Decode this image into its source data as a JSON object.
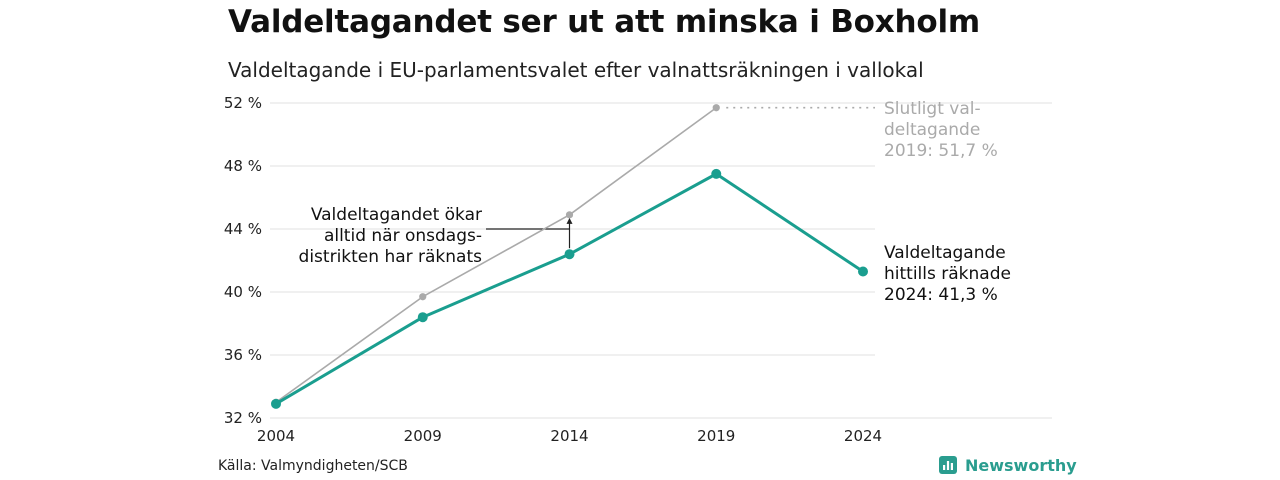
{
  "title": "Valdeltagandet ser ut att minska i Boxholm",
  "subtitle": "Valdeltagande i EU-parlamentsvalet efter valnattsräkningen i vallokal",
  "source": "Källa: Valmyndigheten/SCB",
  "brand": {
    "name": "Newsworthy",
    "icon": "newsworthy-logo-icon",
    "color": "#2a9d8f"
  },
  "chart_data": {
    "type": "line",
    "x": [
      2004,
      2009,
      2014,
      2019,
      2024
    ],
    "x_tick_labels": [
      "2004",
      "2009",
      "2014",
      "2019",
      "2024"
    ],
    "y_ticks": [
      32,
      36,
      40,
      44,
      48,
      52
    ],
    "y_tick_labels": [
      "32 %",
      "36 %",
      "40 %",
      "44 %",
      "48 %",
      "52 %"
    ],
    "ylim": [
      32,
      52
    ],
    "grid": true,
    "series": [
      {
        "key": "final",
        "color": "#aaaaaa",
        "values": [
          33.0,
          39.7,
          44.9,
          51.7,
          null
        ]
      },
      {
        "key": "counted",
        "color": "#1a9e8f",
        "values": [
          32.9,
          38.4,
          42.4,
          47.5,
          41.3
        ]
      }
    ],
    "annotations": [
      {
        "key": "final_label",
        "lines": [
          "Slutligt val-",
          "deltagande",
          "2019: 51,7 %"
        ],
        "color": "#aaaaaa"
      },
      {
        "key": "counted_label",
        "lines": [
          "Valdeltagande",
          "hittills räknade",
          "2024: 41,3 %"
        ],
        "color": "#111111"
      },
      {
        "key": "note",
        "lines": [
          "Valdeltagandet ökar",
          "alltid när onsdags-",
          "distrikten har räknats"
        ],
        "color": "#111111"
      }
    ]
  }
}
